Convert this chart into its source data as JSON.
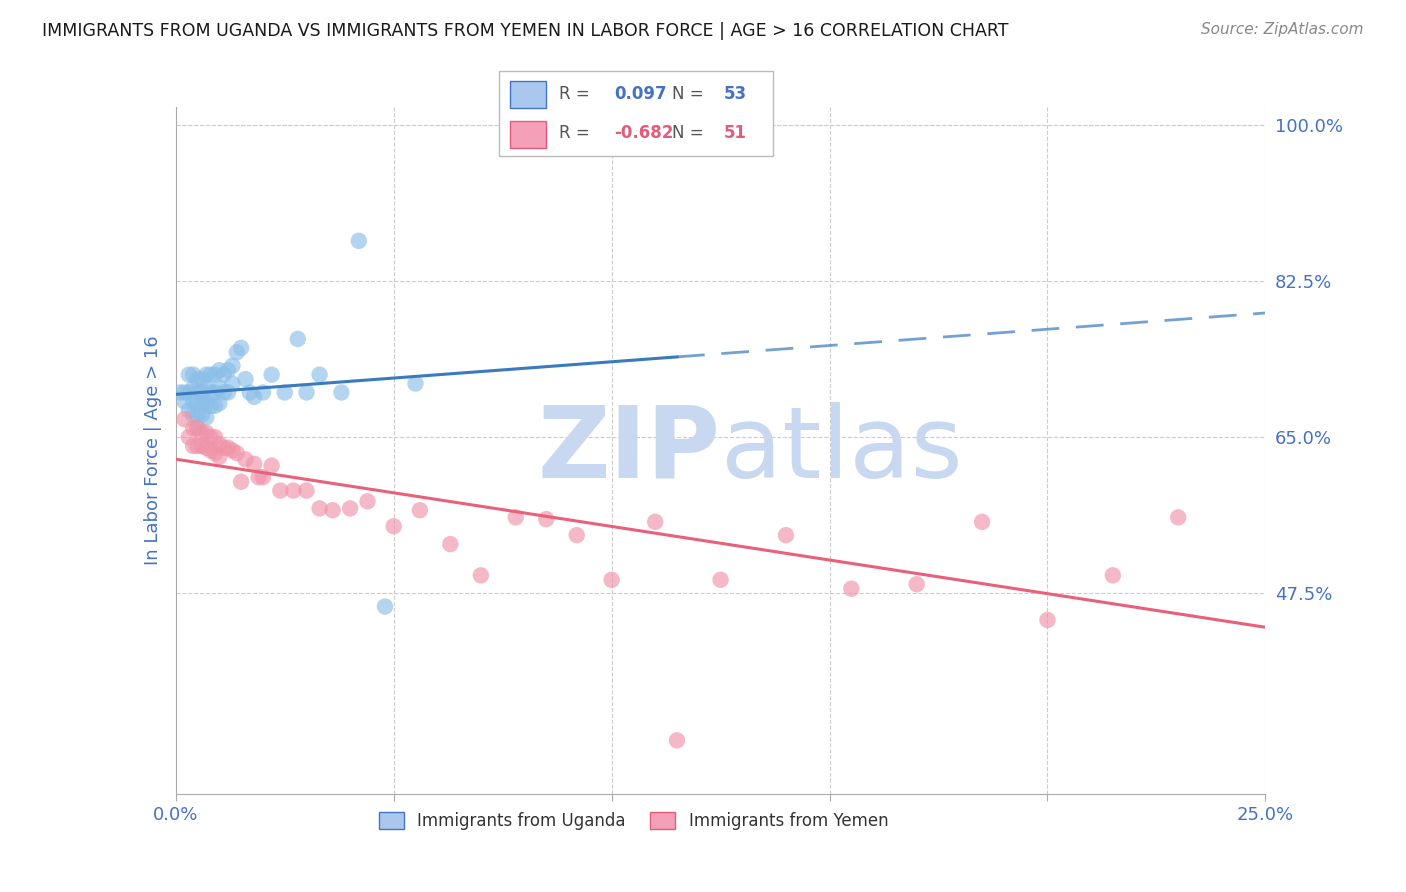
{
  "title": "IMMIGRANTS FROM UGANDA VS IMMIGRANTS FROM YEMEN IN LABOR FORCE | AGE > 16 CORRELATION CHART",
  "source": "Source: ZipAtlas.com",
  "ylabel": "In Labor Force | Age > 16",
  "xlim": [
    0.0,
    0.25
  ],
  "ylim": [
    0.25,
    1.02
  ],
  "yticks": [
    0.475,
    0.65,
    0.825,
    1.0
  ],
  "ytick_labels": [
    "47.5%",
    "65.0%",
    "82.5%",
    "100.0%"
  ],
  "uganda_R": 0.097,
  "uganda_N": 53,
  "yemen_R": -0.682,
  "yemen_N": 51,
  "uganda_color": "#8bbfe8",
  "yemen_color": "#f093a8",
  "uganda_line_color": "#3a7abf",
  "yemen_line_color": "#e8607a",
  "watermark_color": "#c8d8f0",
  "background_color": "#ffffff",
  "grid_color": "#cccccc",
  "title_color": "#1a1a1a",
  "tick_label_color": "#4472c4",
  "uganda_x": [
    0.001,
    0.002,
    0.002,
    0.003,
    0.003,
    0.003,
    0.004,
    0.004,
    0.004,
    0.004,
    0.005,
    0.005,
    0.005,
    0.005,
    0.005,
    0.006,
    0.006,
    0.006,
    0.006,
    0.007,
    0.007,
    0.007,
    0.007,
    0.008,
    0.008,
    0.008,
    0.009,
    0.009,
    0.009,
    0.01,
    0.01,
    0.01,
    0.011,
    0.011,
    0.012,
    0.012,
    0.013,
    0.013,
    0.014,
    0.015,
    0.016,
    0.017,
    0.018,
    0.02,
    0.022,
    0.025,
    0.028,
    0.03,
    0.033,
    0.038,
    0.042,
    0.048,
    0.055
  ],
  "uganda_y": [
    0.7,
    0.7,
    0.69,
    0.72,
    0.7,
    0.68,
    0.72,
    0.705,
    0.69,
    0.675,
    0.715,
    0.7,
    0.688,
    0.675,
    0.66,
    0.715,
    0.7,
    0.688,
    0.675,
    0.72,
    0.705,
    0.688,
    0.672,
    0.72,
    0.7,
    0.685,
    0.72,
    0.7,
    0.685,
    0.725,
    0.705,
    0.688,
    0.72,
    0.7,
    0.725,
    0.7,
    0.73,
    0.71,
    0.745,
    0.75,
    0.715,
    0.7,
    0.695,
    0.7,
    0.72,
    0.7,
    0.76,
    0.7,
    0.72,
    0.7,
    0.87,
    0.46,
    0.71
  ],
  "yemen_x": [
    0.002,
    0.003,
    0.004,
    0.004,
    0.005,
    0.005,
    0.006,
    0.006,
    0.007,
    0.007,
    0.008,
    0.008,
    0.009,
    0.009,
    0.01,
    0.01,
    0.011,
    0.012,
    0.013,
    0.014,
    0.015,
    0.016,
    0.018,
    0.019,
    0.02,
    0.022,
    0.024,
    0.027,
    0.03,
    0.033,
    0.036,
    0.04,
    0.044,
    0.05,
    0.056,
    0.063,
    0.07,
    0.078,
    0.085,
    0.092,
    0.1,
    0.11,
    0.125,
    0.14,
    0.155,
    0.17,
    0.185,
    0.2,
    0.215,
    0.23,
    0.115
  ],
  "yemen_y": [
    0.67,
    0.65,
    0.64,
    0.66,
    0.66,
    0.64,
    0.655,
    0.64,
    0.655,
    0.638,
    0.65,
    0.635,
    0.65,
    0.632,
    0.642,
    0.628,
    0.638,
    0.638,
    0.635,
    0.632,
    0.6,
    0.625,
    0.62,
    0.605,
    0.605,
    0.618,
    0.59,
    0.59,
    0.59,
    0.57,
    0.568,
    0.57,
    0.578,
    0.55,
    0.568,
    0.53,
    0.495,
    0.56,
    0.558,
    0.54,
    0.49,
    0.555,
    0.49,
    0.54,
    0.48,
    0.485,
    0.555,
    0.445,
    0.495,
    0.56,
    0.31
  ]
}
